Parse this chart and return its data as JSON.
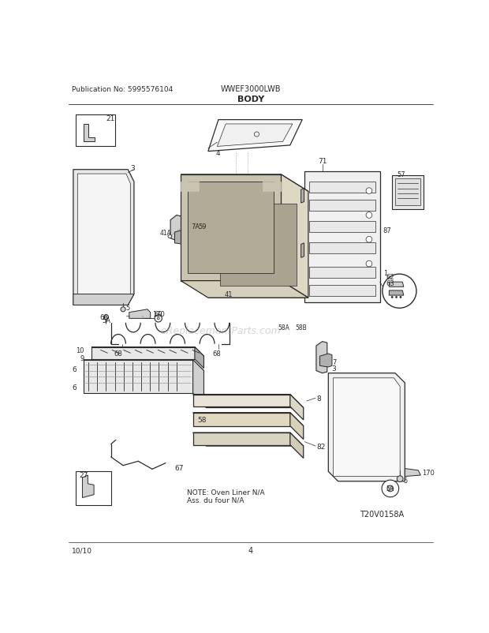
{
  "title": "BODY",
  "header_left": "Publication No: 5995576104",
  "header_center": "WWEF3000LWB",
  "footer_left": "10/10",
  "footer_center": "4",
  "watermark": "eReplacementParts.com",
  "note_line1": "NOTE: Oven Liner N/A",
  "note_line2": "Ass. du four N/A",
  "diagram_id": "T20V0158A",
  "bg_color": "#ffffff",
  "line_color": "#2a2a2a",
  "light_gray": "#e8e8e8",
  "mid_gray": "#d0d0d0",
  "dark_gray": "#b0b0b0",
  "fig_w": 6.2,
  "fig_h": 8.03,
  "dpi": 100
}
